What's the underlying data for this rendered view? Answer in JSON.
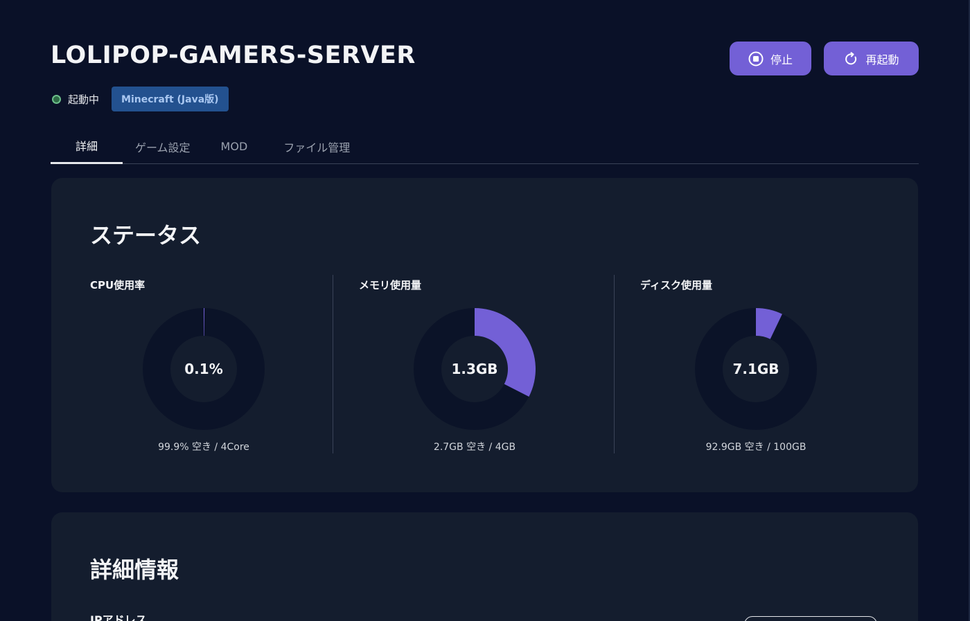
{
  "server": {
    "name": "LOLIPOP-GAMERS-SERVER",
    "status": "起動中",
    "game": "Minecraft (Java版)"
  },
  "actions": {
    "stop_label": "停止",
    "restart_label": "再起動"
  },
  "tabs": [
    {
      "label": "詳細",
      "active": true
    },
    {
      "label": "ゲーム設定",
      "active": false
    },
    {
      "label": "MOD",
      "active": false
    },
    {
      "label": "ファイル管理",
      "active": false
    }
  ],
  "status_card": {
    "title": "ステータス",
    "metrics": [
      {
        "label": "CPU使用率",
        "value": "0.1%",
        "free": "99.9% 空き / 4Core",
        "fraction": 0.001
      },
      {
        "label": "メモリ使用量",
        "value": "1.3GB",
        "free": "2.7GB 空き / 4GB",
        "fraction": 0.325
      },
      {
        "label": "ディスク使用量",
        "value": "7.1GB",
        "free": "92.9GB 空き / 100GB",
        "fraction": 0.071
      }
    ]
  },
  "detail_card": {
    "title": "詳細情報",
    "ip_label": "IPアドレス"
  },
  "colors": {
    "background": "#0a1128",
    "card": "#141d2e",
    "accent": "#7360d6",
    "donut_track": "#0b1328",
    "badge_bg": "#23518f",
    "status_ok": "#6dbf8b"
  }
}
